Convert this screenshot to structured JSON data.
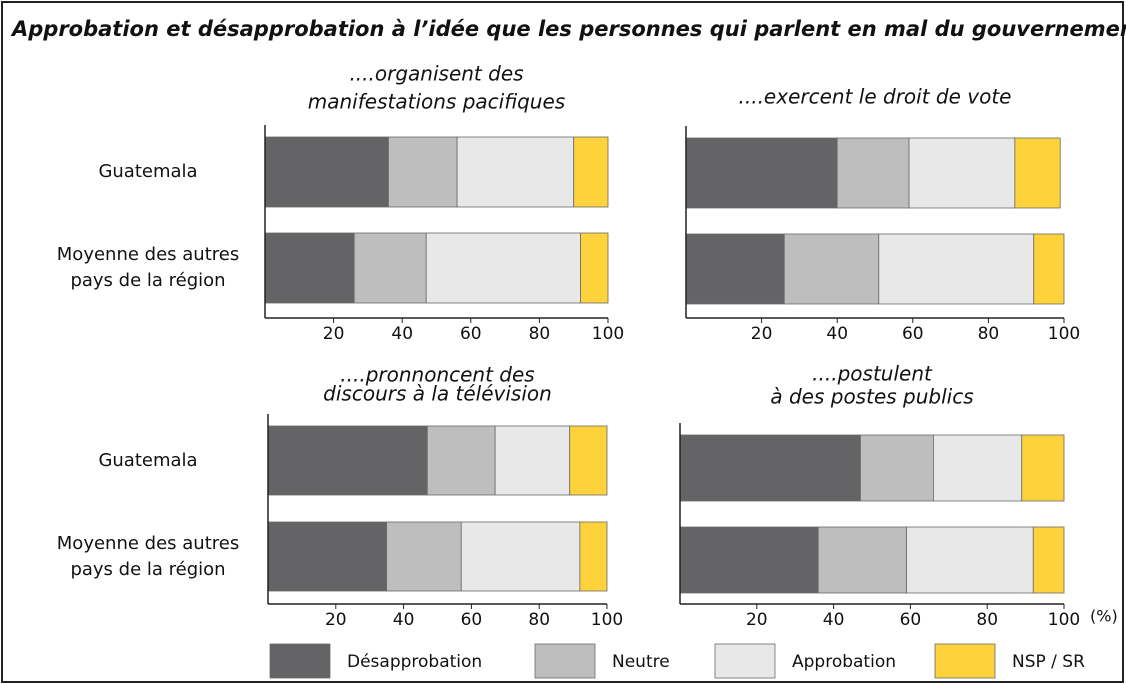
{
  "title": "Approbation et désapprobation à l’idée que les personnes qui parlent en mal du gouvernement...",
  "unit_label": "(%)",
  "chart_data": [
    {
      "type": "stacked-bar",
      "title": [
        "....organisent des",
        "manifestations pacifiques"
      ],
      "categories": [
        "Guatemala",
        "Moyenne des autres pays de la région"
      ],
      "series": [
        {
          "name": "Désapprobation",
          "color": "#646466",
          "values": [
            36,
            26
          ]
        },
        {
          "name": "Neutre",
          "color": "#bebebe",
          "values": [
            20,
            21
          ]
        },
        {
          "name": "Approbation",
          "color": "#e8e8e8",
          "values": [
            34,
            45
          ]
        },
        {
          "name": "NSP / SR",
          "color": "#fdd23a",
          "values": [
            10,
            8
          ]
        }
      ],
      "xlim": [
        0,
        100
      ],
      "xticks": [
        20,
        40,
        60,
        80,
        100
      ]
    },
    {
      "type": "stacked-bar",
      "title": [
        "....exercent le droit de vote"
      ],
      "categories": [
        "Guatemala",
        "Moyenne des autres pays de la région"
      ],
      "series": [
        {
          "name": "Désapprobation",
          "color": "#646466",
          "values": [
            40,
            26
          ]
        },
        {
          "name": "Neutre",
          "color": "#bebebe",
          "values": [
            19,
            25
          ]
        },
        {
          "name": "Approbation",
          "color": "#e8e8e8",
          "values": [
            28,
            41
          ]
        },
        {
          "name": "NSP / SR",
          "color": "#fdd23a",
          "values": [
            12,
            8
          ]
        }
      ],
      "xlim": [
        0,
        100
      ],
      "xticks": [
        20,
        40,
        60,
        80,
        100
      ]
    },
    {
      "type": "stacked-bar",
      "title": [
        "....pronnoncent des",
        "discours à la télévision"
      ],
      "categories": [
        "Guatemala",
        "Moyenne des autres pays de la région"
      ],
      "series": [
        {
          "name": "Désapprobation",
          "color": "#646466",
          "values": [
            47,
            35
          ]
        },
        {
          "name": "Neutre",
          "color": "#bebebe",
          "values": [
            20,
            22
          ]
        },
        {
          "name": "Approbation",
          "color": "#e8e8e8",
          "values": [
            22,
            35
          ]
        },
        {
          "name": "NSP / SR",
          "color": "#fdd23a",
          "values": [
            11,
            8
          ]
        }
      ],
      "xlim": [
        0,
        100
      ],
      "xticks": [
        20,
        40,
        60,
        80,
        100
      ]
    },
    {
      "type": "stacked-bar",
      "title": [
        "....postulent",
        "à des postes publics"
      ],
      "categories": [
        "Guatemala",
        "Moyenne des autres pays de la région"
      ],
      "series": [
        {
          "name": "Désapprobation",
          "color": "#646466",
          "values": [
            47,
            36
          ]
        },
        {
          "name": "Neutre",
          "color": "#bebebe",
          "values": [
            19,
            23
          ]
        },
        {
          "name": "Approbation",
          "color": "#e8e8e8",
          "values": [
            23,
            33
          ]
        },
        {
          "name": "NSP / SR",
          "color": "#fdd23a",
          "values": [
            11,
            8
          ]
        }
      ],
      "xlim": [
        0,
        100
      ],
      "xticks": [
        20,
        40,
        60,
        80,
        100
      ]
    }
  ]
}
